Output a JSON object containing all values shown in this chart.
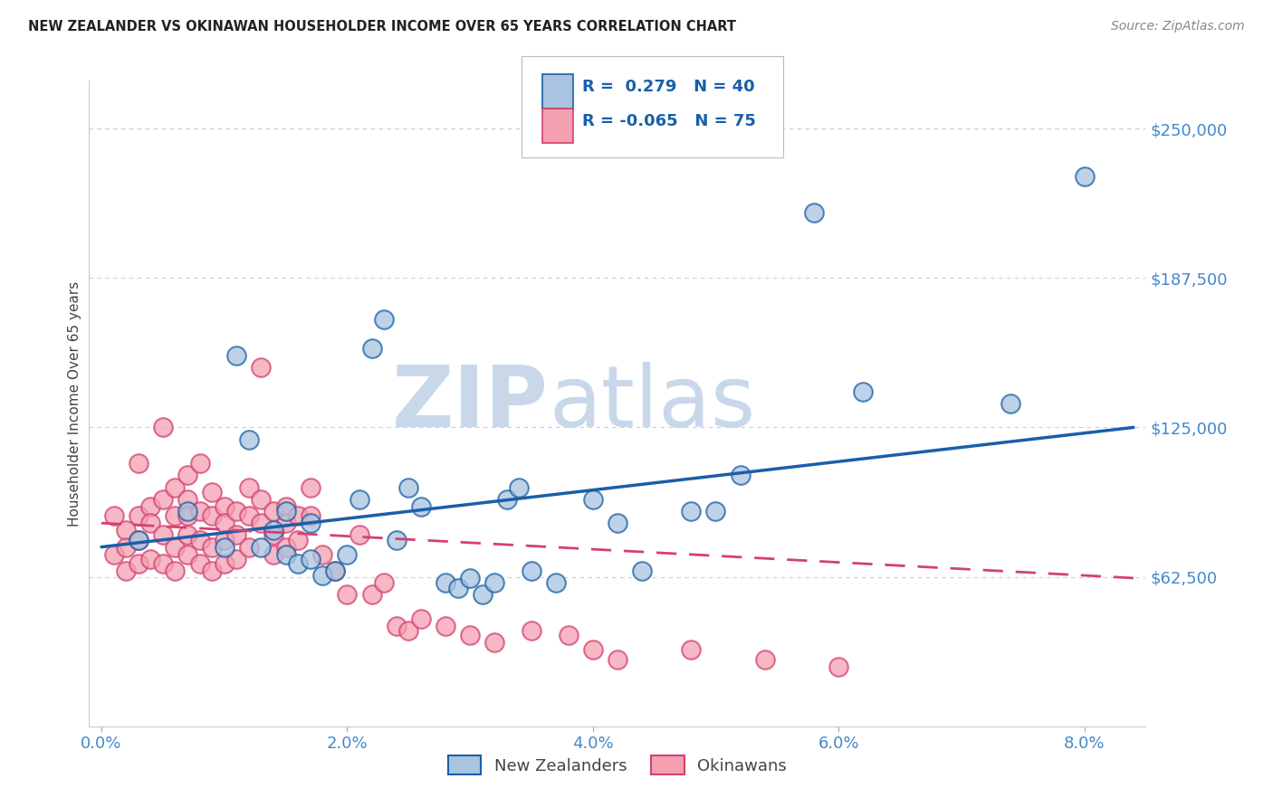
{
  "title": "NEW ZEALANDER VS OKINAWAN HOUSEHOLDER INCOME OVER 65 YEARS CORRELATION CHART",
  "source": "Source: ZipAtlas.com",
  "ylabel": "Householder Income Over 65 years",
  "xlabel_ticks": [
    "0.0%",
    "2.0%",
    "4.0%",
    "6.0%",
    "8.0%"
  ],
  "xlabel_vals": [
    0.0,
    0.02,
    0.04,
    0.06,
    0.08
  ],
  "ytick_labels": [
    "$62,500",
    "$125,000",
    "$187,500",
    "$250,000"
  ],
  "ytick_vals": [
    62500,
    125000,
    187500,
    250000
  ],
  "ylim": [
    0,
    270000
  ],
  "xlim": [
    -0.001,
    0.085
  ],
  "nz_color": "#a8c4e0",
  "ok_color": "#f4a0b0",
  "nz_line_color": "#1a5fa8",
  "ok_line_color": "#d44070",
  "nz_scatter_x": [
    0.003,
    0.007,
    0.01,
    0.011,
    0.012,
    0.013,
    0.014,
    0.015,
    0.015,
    0.016,
    0.017,
    0.017,
    0.018,
    0.019,
    0.02,
    0.021,
    0.022,
    0.023,
    0.024,
    0.025,
    0.026,
    0.028,
    0.029,
    0.03,
    0.031,
    0.032,
    0.033,
    0.034,
    0.035,
    0.037,
    0.04,
    0.042,
    0.044,
    0.048,
    0.05,
    0.052,
    0.058,
    0.062,
    0.074,
    0.08
  ],
  "nz_scatter_y": [
    78000,
    90000,
    75000,
    155000,
    120000,
    75000,
    82000,
    90000,
    72000,
    68000,
    85000,
    70000,
    63000,
    65000,
    72000,
    95000,
    158000,
    170000,
    78000,
    100000,
    92000,
    60000,
    58000,
    62000,
    55000,
    60000,
    95000,
    100000,
    65000,
    60000,
    95000,
    85000,
    65000,
    90000,
    90000,
    105000,
    215000,
    140000,
    135000,
    230000
  ],
  "ok_scatter_x": [
    0.001,
    0.001,
    0.002,
    0.002,
    0.002,
    0.003,
    0.003,
    0.003,
    0.003,
    0.004,
    0.004,
    0.004,
    0.005,
    0.005,
    0.005,
    0.005,
    0.006,
    0.006,
    0.006,
    0.006,
    0.007,
    0.007,
    0.007,
    0.007,
    0.007,
    0.008,
    0.008,
    0.008,
    0.008,
    0.009,
    0.009,
    0.009,
    0.009,
    0.01,
    0.01,
    0.01,
    0.01,
    0.011,
    0.011,
    0.011,
    0.012,
    0.012,
    0.012,
    0.013,
    0.013,
    0.013,
    0.014,
    0.014,
    0.014,
    0.015,
    0.015,
    0.015,
    0.016,
    0.016,
    0.017,
    0.017,
    0.018,
    0.019,
    0.02,
    0.021,
    0.022,
    0.023,
    0.024,
    0.025,
    0.026,
    0.028,
    0.03,
    0.032,
    0.035,
    0.038,
    0.04,
    0.042,
    0.048,
    0.054,
    0.06
  ],
  "ok_scatter_y": [
    88000,
    72000,
    82000,
    75000,
    65000,
    110000,
    88000,
    78000,
    68000,
    92000,
    85000,
    70000,
    125000,
    95000,
    80000,
    68000,
    100000,
    88000,
    75000,
    65000,
    105000,
    95000,
    88000,
    80000,
    72000,
    110000,
    90000,
    78000,
    68000,
    98000,
    88000,
    75000,
    65000,
    92000,
    85000,
    78000,
    68000,
    90000,
    80000,
    70000,
    100000,
    88000,
    75000,
    150000,
    95000,
    85000,
    90000,
    80000,
    72000,
    92000,
    85000,
    75000,
    88000,
    78000,
    100000,
    88000,
    72000,
    65000,
    55000,
    80000,
    55000,
    60000,
    42000,
    40000,
    45000,
    42000,
    38000,
    35000,
    40000,
    38000,
    32000,
    28000,
    32000,
    28000,
    25000
  ],
  "background_color": "#ffffff",
  "watermark_zip": "ZIP",
  "watermark_atlas": "atlas",
  "watermark_color": "#c8d8ea"
}
